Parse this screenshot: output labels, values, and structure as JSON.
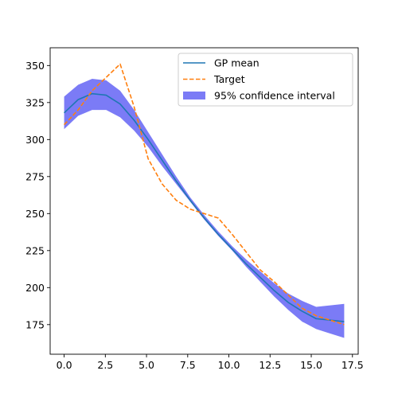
{
  "chart_data": {
    "type": "line",
    "title": "",
    "xlabel": "",
    "ylabel": "",
    "xlim": [
      -0.85,
      17.85
    ],
    "ylim": [
      155,
      362
    ],
    "xticks": [
      0.0,
      2.5,
      5.0,
      7.5,
      10.0,
      12.5,
      15.0,
      17.5
    ],
    "xtick_labels": [
      "0.0",
      "2.5",
      "5.0",
      "7.5",
      "10.0",
      "12.5",
      "15.0",
      "17.5"
    ],
    "yticks": [
      175,
      200,
      225,
      250,
      275,
      300,
      325,
      350
    ],
    "ytick_labels": [
      "175",
      "200",
      "225",
      "250",
      "275",
      "300",
      "325",
      "350"
    ],
    "grid": false,
    "legend_position": "top-right",
    "series": [
      {
        "name": "GP mean",
        "color": "#1f77b4",
        "style": "solid",
        "x": [
          0,
          0.85,
          1.7,
          2.55,
          3.4,
          4.25,
          5.1,
          5.95,
          6.8,
          7.65,
          8.5,
          9.35,
          10.2,
          11.05,
          11.9,
          12.75,
          13.6,
          14.45,
          15.3,
          16.15,
          17.0
        ],
        "y": [
          318,
          327,
          331,
          330,
          324,
          313,
          300,
          286,
          272,
          259,
          247,
          236,
          226,
          216,
          207,
          198,
          190,
          184,
          179,
          178,
          177
        ]
      },
      {
        "name": "Target",
        "color": "#ff7f0e",
        "style": "dashed",
        "x": [
          0,
          0.85,
          1.7,
          2.55,
          3.4,
          4.25,
          5.1,
          5.95,
          6.8,
          7.65,
          8.5,
          9.35,
          10.2,
          11.05,
          11.9,
          12.75,
          13.6,
          14.45,
          15.3,
          16.15,
          17.0
        ],
        "y": [
          310,
          320,
          333,
          342,
          351,
          322,
          287,
          270,
          259,
          253,
          250,
          247,
          236,
          224,
          212,
          204,
          195,
          186,
          181,
          178,
          175
        ]
      }
    ],
    "bands": [
      {
        "name": "95% confidence interval",
        "color": "#7b7bf6",
        "x": [
          0,
          0.85,
          1.7,
          2.55,
          3.4,
          4.25,
          5.1,
          5.95,
          6.8,
          7.65,
          8.5,
          9.35,
          10.2,
          11.05,
          11.9,
          12.75,
          13.6,
          14.45,
          15.3,
          16.15,
          17.0
        ],
        "lower": [
          307,
          316,
          320,
          320,
          315,
          306,
          295,
          282,
          270,
          258,
          246,
          235,
          225,
          214,
          204,
          194,
          185,
          177,
          172,
          169,
          166
        ],
        "upper": [
          329,
          337,
          341,
          340,
          333,
          320,
          305,
          290,
          275,
          261,
          249,
          238,
          228,
          219,
          211,
          203,
          196,
          191,
          187,
          188,
          189
        ]
      }
    ]
  }
}
